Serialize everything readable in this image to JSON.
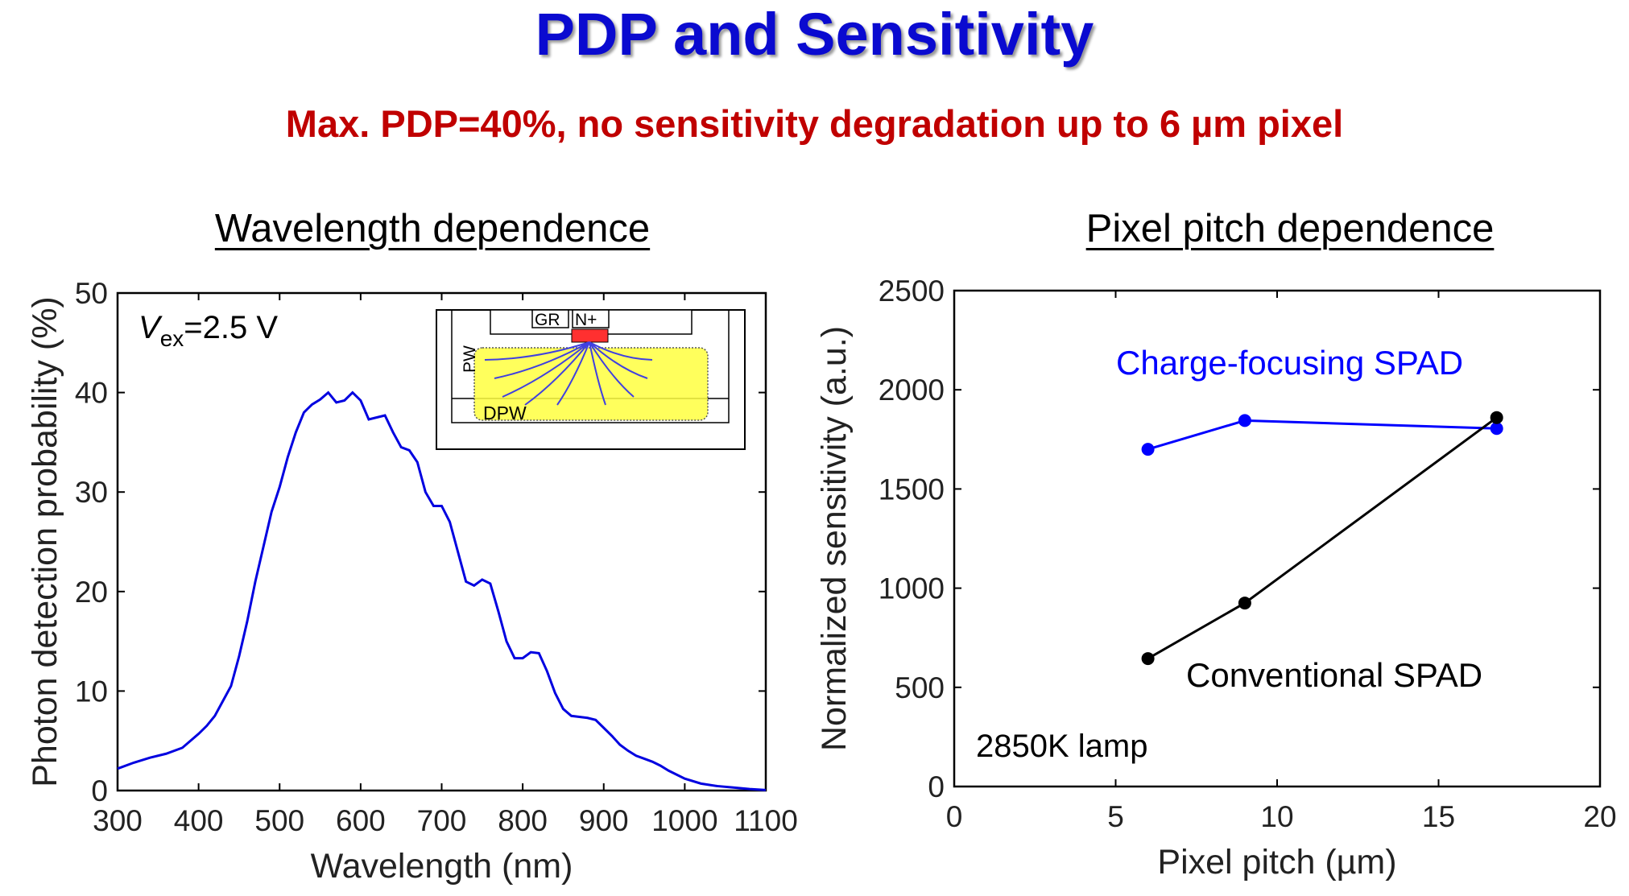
{
  "title": "PDP and Sensitivity",
  "subtitle": "Max. PDP=40%, no sensitivity degradation up to 6 µm pixel",
  "chart_data": [
    {
      "type": "line",
      "title": "Wavelength dependence",
      "xlabel": "Wavelength (nm)",
      "ylabel": "Photon detection probability (%)",
      "xlim": [
        300,
        1100
      ],
      "ylim": [
        0,
        50
      ],
      "xticks": [
        300,
        400,
        500,
        600,
        700,
        800,
        900,
        1000,
        1100
      ],
      "yticks": [
        0,
        10,
        20,
        30,
        40,
        50
      ],
      "grid": false,
      "annotation": {
        "var": "V",
        "sub": "ex",
        "rest": "=2.5 V"
      },
      "inset_labels": {
        "gr": "GR",
        "n": "N+",
        "pw": "PW",
        "dpw": "DPW"
      },
      "colors": {
        "line": "#0000e0",
        "inset_fill": "#ffff40",
        "inset_contact": "#ff3030",
        "inset_field": "#4040e0"
      },
      "series": [
        {
          "x": [
            300,
            320,
            340,
            360,
            380,
            400,
            410,
            420,
            430,
            440,
            450,
            460,
            470,
            480,
            490,
            500,
            510,
            520,
            530,
            540,
            550,
            560,
            570,
            580,
            590,
            600,
            610,
            620,
            630,
            640,
            650,
            660,
            670,
            680,
            690,
            700,
            710,
            720,
            730,
            740,
            750,
            760,
            770,
            780,
            790,
            800,
            810,
            820,
            830,
            840,
            850,
            860,
            870,
            880,
            890,
            900,
            910,
            920,
            930,
            940,
            950,
            960,
            970,
            980,
            990,
            1000,
            1020,
            1040,
            1060,
            1080,
            1100
          ],
          "y": [
            2.2,
            2.8,
            3.3,
            3.7,
            4.3,
            5.7,
            6.5,
            7.5,
            9,
            10.5,
            13.5,
            17,
            21,
            24.5,
            28,
            30.5,
            33.5,
            36,
            38,
            38.8,
            39.3,
            40,
            39,
            39.2,
            40,
            39.2,
            37.3,
            37.5,
            37.7,
            36,
            34.5,
            34.2,
            33,
            30,
            28.6,
            28.6,
            27,
            24,
            21,
            20.6,
            21.2,
            20.8,
            18,
            15,
            13.3,
            13.3,
            13.9,
            13.8,
            12,
            9.8,
            8.2,
            7.5,
            7.4,
            7.3,
            7.1,
            6.3,
            5.5,
            4.6,
            4,
            3.5,
            3.2,
            2.9,
            2.5,
            2,
            1.6,
            1.2,
            0.7,
            0.45,
            0.3,
            0.15,
            0.05
          ]
        }
      ]
    },
    {
      "type": "line",
      "title": "Pixel pitch dependence",
      "xlabel": "Pixel pitch (µm)",
      "ylabel": "Normalized sensitivity (a.u.)",
      "xlim": [
        0,
        20
      ],
      "ylim": [
        0,
        2500
      ],
      "xticks": [
        0,
        5,
        10,
        15,
        20
      ],
      "yticks": [
        0,
        500,
        1000,
        1500,
        2000,
        2500
      ],
      "grid": false,
      "annotation": "2850K lamp",
      "series": [
        {
          "name": "Charge-focusing SPAD",
          "color": "#0000ff",
          "x": [
            6,
            9,
            16.8
          ],
          "y": [
            1700,
            1845,
            1805
          ]
        },
        {
          "name": "Conventional SPAD",
          "color": "#000000",
          "x": [
            6,
            9,
            16.8
          ],
          "y": [
            645,
            925,
            1860
          ]
        }
      ]
    }
  ]
}
